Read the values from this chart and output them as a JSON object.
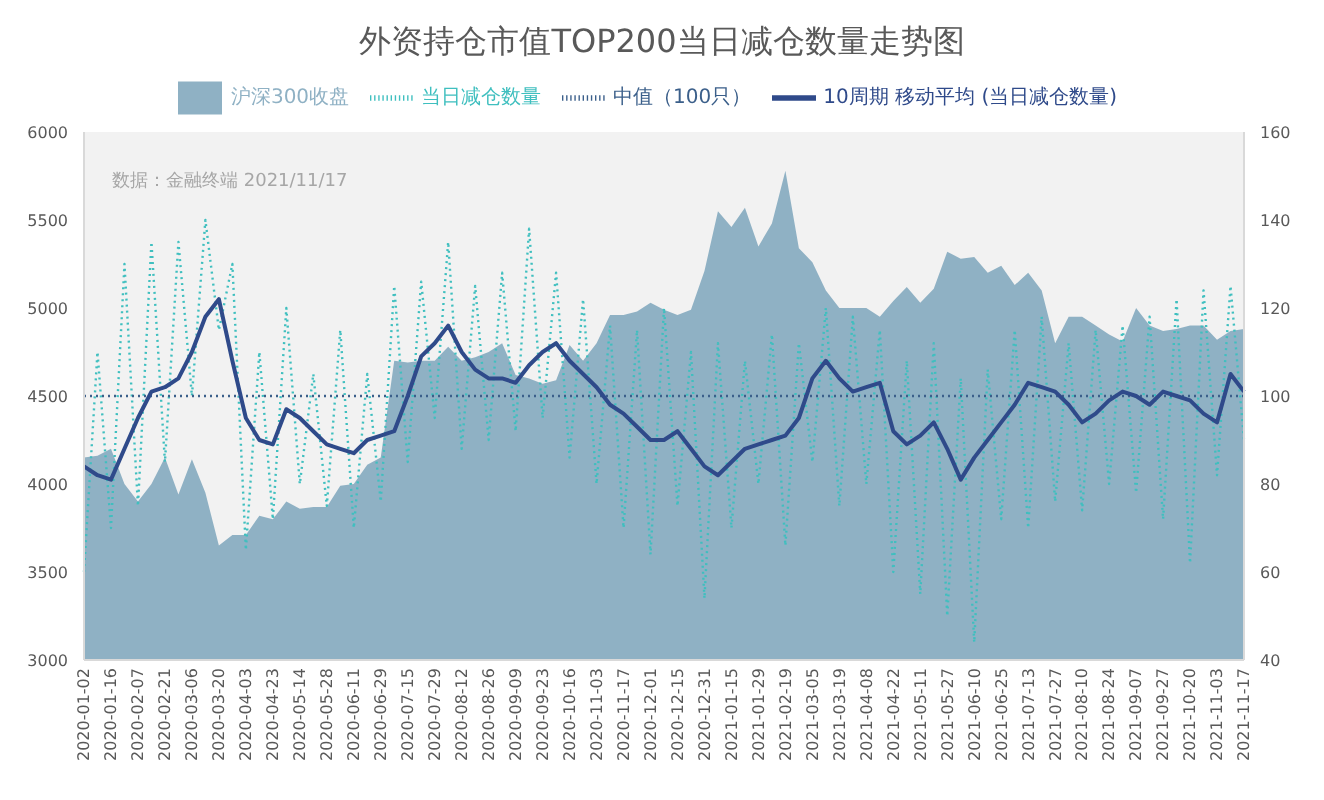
{
  "chart_data": {
    "type": "line",
    "title": "外资持仓市值TOP200当日减仓数量走势图",
    "annotations": [
      "数据：金融终端 2021/11/17"
    ],
    "categories": [
      "2020-01-02",
      null,
      "2020-01-16",
      null,
      "2020-02-07",
      null,
      "2020-02-21",
      null,
      "2020-03-06",
      null,
      "2020-03-20",
      null,
      "2020-04-03",
      null,
      "2020-04-23",
      null,
      "2020-05-14",
      null,
      "2020-05-28",
      null,
      "2020-06-11",
      null,
      "2020-06-29",
      null,
      "2020-07-15",
      null,
      "2020-07-29",
      null,
      "2020-08-12",
      null,
      "2020-08-26",
      null,
      "2020-09-09",
      null,
      "2020-09-23",
      null,
      "2020-10-16",
      null,
      "2020-11-03",
      null,
      "2020-11-17",
      null,
      "2020-12-01",
      null,
      "2020-12-15",
      null,
      "2020-12-31",
      null,
      "2021-01-15",
      null,
      "2021-01-29",
      null,
      "2021-02-19",
      null,
      "2021-03-05",
      null,
      "2021-03-19",
      null,
      "2021-04-08",
      null,
      "2021-04-22",
      null,
      "2021-05-11",
      null,
      "2021-05-27",
      null,
      "2021-06-10",
      null,
      "2021-06-25",
      null,
      "2021-07-13",
      null,
      "2021-07-27",
      null,
      "2021-08-10",
      null,
      "2021-08-24",
      null,
      "2021-09-07",
      null,
      "2021-09-27",
      null,
      "2021-10-20",
      null,
      "2021-11-03",
      null,
      "2021-11-17"
    ],
    "series": [
      {
        "name": "沪深300收盘",
        "type": "area",
        "color": "#8fb1c4",
        "values": [
          4150,
          4160,
          4200,
          4000,
          3900,
          4000,
          4150,
          3940,
          4140,
          3950,
          3650,
          3710,
          3710,
          3820,
          3800,
          3900,
          3860,
          3870,
          3870,
          3990,
          4000,
          4110,
          4150,
          4700,
          4690,
          4700,
          4700,
          4780,
          4700,
          4720,
          4750,
          4800,
          4620,
          4600,
          4570,
          4590,
          4790,
          4700,
          4800,
          4960,
          4960,
          4980,
          5030,
          4990,
          4960,
          4990,
          5210,
          5550,
          5460,
          5570,
          5350,
          5480,
          5780,
          5340,
          5260,
          5100,
          5000,
          5000,
          5000,
          4950,
          5040,
          5120,
          5030,
          5110,
          5320,
          5280,
          5290,
          5200,
          5240,
          5130,
          5200,
          5100,
          4800,
          4950,
          4950,
          4900,
          4850,
          4810,
          5000,
          4900,
          4870,
          4880,
          4900,
          4900,
          4820,
          4870,
          4880
        ]
      },
      {
        "name": "当日减仓数量",
        "axis": "y2",
        "line_style": "dotted",
        "color": "#3fbfbf",
        "values": [
          60,
          110,
          70,
          130,
          75,
          135,
          85,
          135,
          100,
          140,
          115,
          130,
          65,
          110,
          72,
          120,
          80,
          105,
          75,
          115,
          70,
          105,
          76,
          125,
          85,
          126,
          95,
          135,
          88,
          125,
          90,
          128,
          92,
          138,
          95,
          128,
          86,
          122,
          80,
          116,
          70,
          115,
          64,
          120,
          75,
          110,
          54,
          112,
          70,
          108,
          80,
          114,
          66,
          112,
          85,
          120,
          75,
          118,
          80,
          115,
          60,
          108,
          55,
          112,
          50,
          104,
          44,
          106,
          72,
          115,
          70,
          118,
          76,
          112,
          74,
          115,
          80,
          116,
          78,
          118,
          72,
          122,
          62,
          124,
          82,
          125,
          90
        ]
      },
      {
        "name": "中值（100只）",
        "axis": "y2",
        "line_style": "dotted",
        "color": "#3b5f8a",
        "values": [
          100,
          100,
          100,
          100,
          100,
          100,
          100,
          100,
          100,
          100,
          100,
          100,
          100,
          100,
          100,
          100,
          100,
          100,
          100,
          100,
          100,
          100,
          100,
          100,
          100,
          100,
          100,
          100,
          100,
          100,
          100,
          100,
          100,
          100,
          100,
          100,
          100,
          100,
          100,
          100,
          100,
          100,
          100,
          100,
          100,
          100,
          100,
          100,
          100,
          100,
          100,
          100,
          100,
          100,
          100,
          100,
          100,
          100,
          100,
          100,
          100,
          100,
          100,
          100,
          100,
          100,
          100,
          100,
          100,
          100,
          100,
          100,
          100,
          100,
          100,
          100,
          100,
          100,
          100,
          100,
          100,
          100,
          100,
          100,
          100,
          100,
          100
        ]
      },
      {
        "name": "10周期 移动平均 (当日减仓数量)",
        "axis": "y2",
        "line_style": "solid",
        "color": "#2f4a8a",
        "values": [
          84,
          82,
          81,
          88,
          95,
          101,
          102,
          104,
          110,
          118,
          122,
          108,
          95,
          90,
          89,
          97,
          95,
          92,
          89,
          88,
          87,
          90,
          91,
          92,
          100,
          109,
          112,
          116,
          110,
          106,
          104,
          104,
          103,
          107,
          110,
          112,
          108,
          105,
          102,
          98,
          96,
          93,
          90,
          90,
          92,
          88,
          84,
          82,
          85,
          88,
          89,
          90,
          91,
          95,
          104,
          108,
          104,
          101,
          102,
          103,
          92,
          89,
          91,
          94,
          88,
          81,
          86,
          90,
          94,
          98,
          103,
          102,
          101,
          98,
          94,
          96,
          99,
          101,
          100,
          98,
          101,
          100,
          99,
          96,
          94,
          105,
          101
        ]
      }
    ],
    "ylim": [
      3000,
      6000
    ],
    "yticks": [
      3000,
      3500,
      4000,
      4500,
      5000,
      5500,
      6000
    ],
    "y2lim": [
      40,
      160
    ],
    "y2ticks": [
      40,
      60,
      80,
      100,
      120,
      140,
      160
    ],
    "grid": false,
    "legend": "top",
    "marker": "none"
  }
}
